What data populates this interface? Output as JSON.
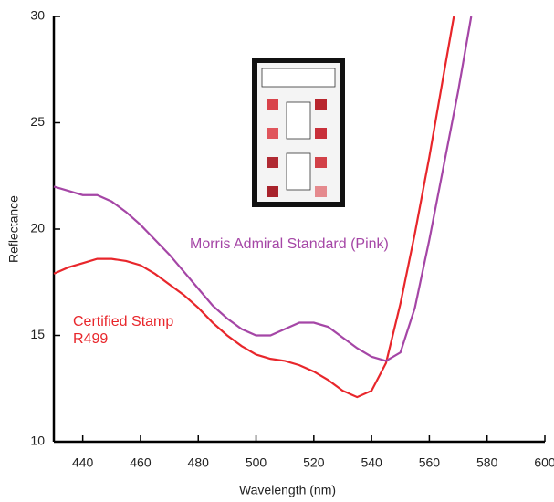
{
  "chart_data": {
    "type": "line",
    "x_label": "Wavelength (nm)",
    "y_label": "Reflectance",
    "xlim": [
      430,
      600
    ],
    "ylim": [
      10,
      30
    ],
    "xticks": [
      440,
      460,
      480,
      500,
      520,
      540,
      560,
      580,
      600
    ],
    "yticks": [
      10,
      15,
      20,
      25,
      30
    ],
    "series": [
      {
        "name": "Certified Stamp R499",
        "color": "#e8262b",
        "x": [
          430,
          435,
          440,
          445,
          450,
          455,
          460,
          465,
          470,
          475,
          480,
          485,
          490,
          495,
          500,
          505,
          510,
          515,
          520,
          525,
          530,
          535,
          540,
          545,
          550,
          555,
          560,
          565,
          568.5
        ],
        "values": [
          17.9,
          18.2,
          18.4,
          18.6,
          18.6,
          18.5,
          18.3,
          17.9,
          17.4,
          16.9,
          16.3,
          15.6,
          15.0,
          14.5,
          14.1,
          13.9,
          13.8,
          13.6,
          13.3,
          12.9,
          12.4,
          12.1,
          12.4,
          13.7,
          16.5,
          19.8,
          23.4,
          27.3,
          30
        ]
      },
      {
        "name": "Morris Admiral Standard (Pink)",
        "color": "#a546a6",
        "x": [
          430,
          435,
          440,
          445,
          450,
          455,
          460,
          465,
          470,
          475,
          480,
          485,
          490,
          495,
          500,
          505,
          510,
          515,
          520,
          525,
          530,
          535,
          540,
          545,
          550,
          555,
          560,
          565,
          570,
          574.5
        ],
        "values": [
          22.0,
          21.8,
          21.6,
          21.6,
          21.3,
          20.8,
          20.2,
          19.5,
          18.8,
          18.0,
          17.2,
          16.4,
          15.8,
          15.3,
          15.0,
          15.0,
          15.3,
          15.6,
          15.6,
          15.4,
          14.9,
          14.4,
          14.0,
          13.8,
          14.2,
          16.3,
          19.5,
          23.0,
          26.5,
          30
        ]
      }
    ]
  }
}
